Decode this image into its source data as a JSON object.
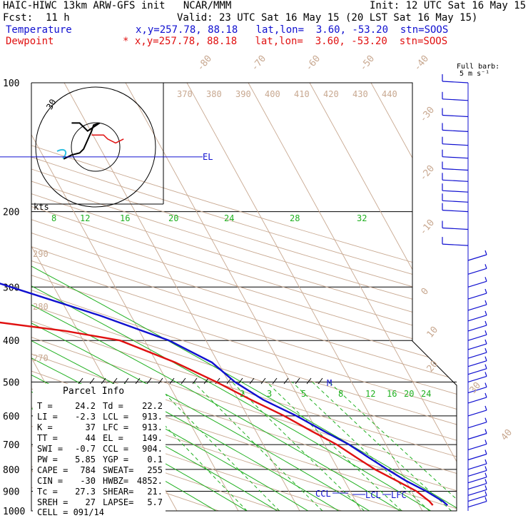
{
  "header": {
    "title": "HAIC-HIWC 13km ARW-GFS init   NCAR/MMM",
    "init": "Init: 12 UTC Sat 16 May 15",
    "fcst_label": "Fcst:",
    "fcst_value": "11 h",
    "valid": "Valid: 23 UTC Sat 16 May 15 (20 LST Sat 16 May 15)",
    "temp_label": "Temperature",
    "temp_info": "x,y=257.78, 88.18   lat,lon=  3.60, -53.20  stn=SOOS",
    "dew_label": "Dewpoint",
    "dew_info": "* x,y=257.78, 88.18   lat,lon=  3.60, -53.20  stn=SOOS",
    "colors": {
      "temperature": "#1010d0",
      "dewpoint": "#e01010"
    }
  },
  "chart_data": {
    "type": "line",
    "pressure_labels": [
      "100",
      "200",
      "300",
      "400",
      "500",
      "600",
      "700",
      "800",
      "900",
      "1000"
    ],
    "isotherm_labels": [
      "-80",
      "-70",
      "-60",
      "-50",
      "-40",
      "-30",
      "-20",
      "-10",
      "0",
      "10",
      "20",
      "30",
      "40"
    ],
    "theta_labels": [
      "370",
      "380",
      "390",
      "400",
      "410",
      "420",
      "430",
      "440"
    ],
    "theta_left_labels": [
      "290",
      "280",
      "270"
    ],
    "mixing_ratio_upper": [
      "8",
      "12",
      "16",
      "20",
      "24",
      "28",
      "32"
    ],
    "mixing_ratio_lower": [
      "2",
      "3",
      "5",
      "8",
      "12",
      "16",
      "20",
      "24"
    ],
    "hodograph_label": "kts",
    "hodograph_ring_label": "30",
    "wind_barb_title": "Full barb:",
    "wind_barb_unit": "5 m s⁻¹",
    "level_markers": [
      "EL",
      "CCL",
      "LCL",
      "LFC",
      "M"
    ],
    "temperature_series": {
      "name": "Temperature",
      "points": [
        [
          100,
          -76
        ],
        [
          110,
          -73
        ],
        [
          130,
          -68
        ],
        [
          150,
          -62
        ],
        [
          170,
          -58
        ],
        [
          200,
          -54
        ],
        [
          250,
          -41
        ],
        [
          300,
          -27
        ],
        [
          350,
          -15
        ],
        [
          400,
          -6
        ],
        [
          450,
          -1
        ],
        [
          500,
          1
        ],
        [
          550,
          4
        ],
        [
          600,
          8
        ],
        [
          650,
          11
        ],
        [
          700,
          14
        ],
        [
          750,
          16
        ],
        [
          800,
          18
        ],
        [
          850,
          20
        ],
        [
          900,
          22.4
        ],
        [
          950,
          24.2
        ],
        [
          970,
          24.6
        ]
      ]
    },
    "dewpoint_series": {
      "name": "Dewpoint",
      "points": [
        [
          100,
          -86
        ],
        [
          110,
          -87
        ],
        [
          130,
          -90
        ],
        [
          150,
          -88
        ],
        [
          170,
          -86
        ],
        [
          190,
          -86
        ],
        [
          200,
          -72
        ],
        [
          220,
          -58
        ],
        [
          250,
          -44
        ],
        [
          280,
          -39
        ],
        [
          300,
          -39
        ],
        [
          330,
          -42
        ],
        [
          350,
          -40
        ],
        [
          380,
          -22
        ],
        [
          400,
          -14
        ],
        [
          450,
          -7
        ],
        [
          500,
          -2
        ],
        [
          550,
          2
        ],
        [
          600,
          6
        ],
        [
          650,
          9
        ],
        [
          700,
          12
        ],
        [
          750,
          14
        ],
        [
          800,
          16
        ],
        [
          850,
          18.5
        ],
        [
          900,
          20.8
        ],
        [
          950,
          22.0
        ],
        [
          970,
          22.2
        ]
      ]
    },
    "wind_levels_hpa": [
      100,
      110,
      120,
      130,
      140,
      150,
      160,
      170,
      180,
      190,
      200,
      220,
      240,
      260,
      280,
      300,
      320,
      340,
      360,
      380,
      400,
      420,
      440,
      460,
      480,
      500,
      530,
      560,
      600,
      640,
      680,
      720,
      760,
      800,
      830,
      860,
      890,
      920,
      950,
      980
    ],
    "hodograph_points_kts": [
      [
        -16,
        -6
      ],
      [
        -12,
        -4
      ],
      [
        -8,
        -3
      ],
      [
        -6,
        -1
      ],
      [
        -2,
        8
      ],
      [
        -1,
        11
      ],
      [
        2,
        12
      ],
      [
        -4,
        8
      ],
      [
        -8,
        12
      ],
      [
        -12,
        12
      ],
      [
        -2,
        6
      ],
      [
        4,
        6
      ],
      [
        6,
        4
      ],
      [
        10,
        2
      ],
      [
        14,
        4
      ]
    ]
  },
  "parcel_info": {
    "title": "Parcel Info",
    "rows": [
      [
        "T  =",
        "24.2",
        "Td =",
        "22.2"
      ],
      [
        "LI =",
        "-2.3",
        "LCL =",
        "913."
      ],
      [
        "K  =",
        "37",
        "LFC =",
        "913."
      ],
      [
        "TT =",
        "44",
        "EL =",
        "149."
      ],
      [
        "SWI =",
        "-0.7",
        "CCL =",
        "904."
      ],
      [
        "PW =",
        "5.85",
        "YGP =",
        "0.1"
      ],
      [
        "CAPE =",
        "784",
        "SWEAT=",
        "255"
      ],
      [
        "CIN =",
        "-30",
        "HWBZ=",
        "4852."
      ],
      [
        "Tc =",
        "27.3",
        "SHEAR=",
        "21."
      ],
      [
        "SREH =",
        "27",
        "LAPSE=",
        "5.7"
      ]
    ],
    "cell": "CELL = 091/14"
  }
}
